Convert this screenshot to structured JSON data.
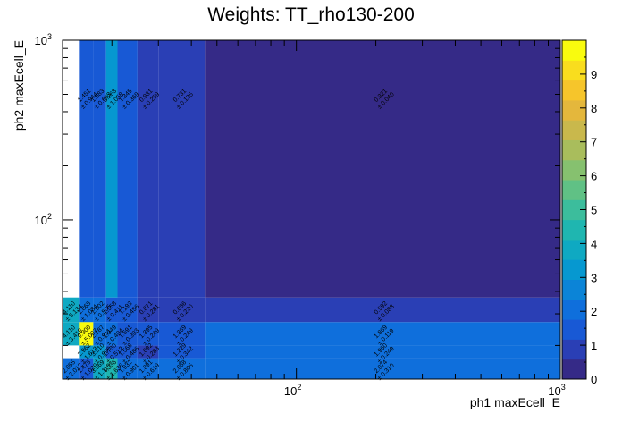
{
  "chart_data": {
    "type": "heatmap",
    "title": "Weights: TT_rho130-200",
    "xlabel": "ph1 maxEcell_E",
    "ylabel": "ph2 maxEcell_E",
    "xscale": "log",
    "yscale": "log",
    "xlim": [
      13,
      1000
    ],
    "ylim": [
      13,
      1000
    ],
    "x_tick_labels": [
      {
        "base": "10",
        "exp": "2",
        "value": 100
      },
      {
        "base": "10",
        "exp": "3",
        "value": 1000
      }
    ],
    "y_tick_labels": [
      {
        "base": "10",
        "exp": "2",
        "value": 100
      },
      {
        "base": "10",
        "exp": "3",
        "value": 1000
      }
    ],
    "colorbar": {
      "min": 0,
      "max": 10,
      "ticks": [
        "0",
        "1",
        "2",
        "3",
        "4",
        "5",
        "6",
        "7",
        "8",
        "9"
      ],
      "palette": [
        "#352a87",
        "#2a3fb5",
        "#1859d5",
        "#0f6fdc",
        "#0b84d7",
        "#0698d0",
        "#0fa9c2",
        "#1fb6b0",
        "#3cbd9c",
        "#60c185",
        "#86c16f",
        "#a9bd5c",
        "#c9b84c",
        "#e4b73c",
        "#f6c52b",
        "#f9dd1e",
        "#f9fb0e"
      ]
    },
    "x_edges": [
      13,
      15,
      17,
      19,
      21,
      25,
      30,
      45,
      1000
    ],
    "y_edges": [
      13,
      17,
      20,
      27,
      37,
      1000
    ],
    "cells": [
      {
        "xi": 0,
        "yi": 0,
        "w": 2.055,
        "e": "± 2.012"
      },
      {
        "xi": 1,
        "yi": 0,
        "w": 1.478,
        "e": "± 1.020"
      },
      {
        "xi": 2,
        "yi": 0,
        "w": 3.569,
        "e": "± 1.110"
      },
      {
        "xi": 3,
        "yi": 0,
        "w": 4.336,
        "e": "± 1.636"
      },
      {
        "xi": 4,
        "yi": 0,
        "w": 1.932,
        "e": "± 0.901"
      },
      {
        "xi": 5,
        "yi": 0,
        "w": 1.891,
        "e": "± 0.619"
      },
      {
        "xi": 6,
        "yi": 0,
        "w": 2.058,
        "e": "± 0.805"
      },
      {
        "xi": 7,
        "yi": 0,
        "w": 2.074,
        "e": "± 0.310"
      },
      {
        "xi": 1,
        "yi": 1,
        "w": 2.962,
        "e": "± 1.612"
      },
      {
        "xi": 2,
        "yi": 1,
        "w": 3.21,
        "e": "± 0.990"
      },
      {
        "xi": 3,
        "yi": 1,
        "w": 1.73,
        "e": "± 0.512"
      },
      {
        "xi": 4,
        "yi": 1,
        "w": 1.568,
        "e": "± 0.486"
      },
      {
        "xi": 5,
        "yi": 1,
        "w": 1.092,
        "e": "± 0.283"
      },
      {
        "xi": 6,
        "yi": 1,
        "w": 1.229,
        "e": "± 0.342"
      },
      {
        "xi": 7,
        "yi": 1,
        "w": 1.96,
        "e": "± 0.249"
      },
      {
        "xi": 0,
        "yi": 2,
        "w": 4.11,
        "e": "± 3.419"
      },
      {
        "xi": 1,
        "yi": 2,
        "w": 9.9,
        "e": "± 5.007"
      },
      {
        "xi": 2,
        "yi": 2,
        "w": 2.187,
        "e": "± 0.911"
      },
      {
        "xi": 3,
        "yi": 2,
        "w": 1.949,
        "e": "± 0.494"
      },
      {
        "xi": 4,
        "yi": 2,
        "w": 1.591,
        "e": "± 0.393"
      },
      {
        "xi": 5,
        "yi": 2,
        "w": 1.395,
        "e": "± 0.249"
      },
      {
        "xi": 6,
        "yi": 2,
        "w": 1.369,
        "e": "± 0.249"
      },
      {
        "xi": 7,
        "yi": 2,
        "w": 1.869,
        "e": "± 0.119"
      },
      {
        "xi": 0,
        "yi": 3,
        "w": 4.11,
        "e": "± 5.134"
      },
      {
        "xi": 1,
        "yi": 3,
        "w": 1.868,
        "e": "± 1.084"
      },
      {
        "xi": 2,
        "yi": 3,
        "w": 1.902,
        "e": "± 0.505"
      },
      {
        "xi": 3,
        "yi": 3,
        "w": 1.558,
        "e": "± 0.411"
      },
      {
        "xi": 4,
        "yi": 3,
        "w": 1.193,
        "e": "± 0.456"
      },
      {
        "xi": 5,
        "yi": 3,
        "w": 0.871,
        "e": "± 0.281"
      },
      {
        "xi": 6,
        "yi": 3,
        "w": 0.886,
        "e": "± 0.220"
      },
      {
        "xi": 7,
        "yi": 3,
        "w": 0.592,
        "e": "± 0.088"
      },
      {
        "xi": 1,
        "yi": 4,
        "w": 1.451,
        "e": "± 0.944"
      },
      {
        "xi": 2,
        "yi": 4,
        "w": 1.583,
        "e": "± 0.663"
      },
      {
        "xi": 3,
        "yi": 4,
        "w": 3.263,
        "e": "± 1.058"
      },
      {
        "xi": 4,
        "yi": 4,
        "w": 1.345,
        "e": "± 0.369"
      },
      {
        "xi": 5,
        "yi": 4,
        "w": 0.931,
        "e": "± 0.259"
      },
      {
        "xi": 6,
        "yi": 4,
        "w": 0.731,
        "e": "± 0.135"
      },
      {
        "xi": 7,
        "yi": 4,
        "w": 0.321,
        "e": "± 0.040"
      }
    ]
  }
}
